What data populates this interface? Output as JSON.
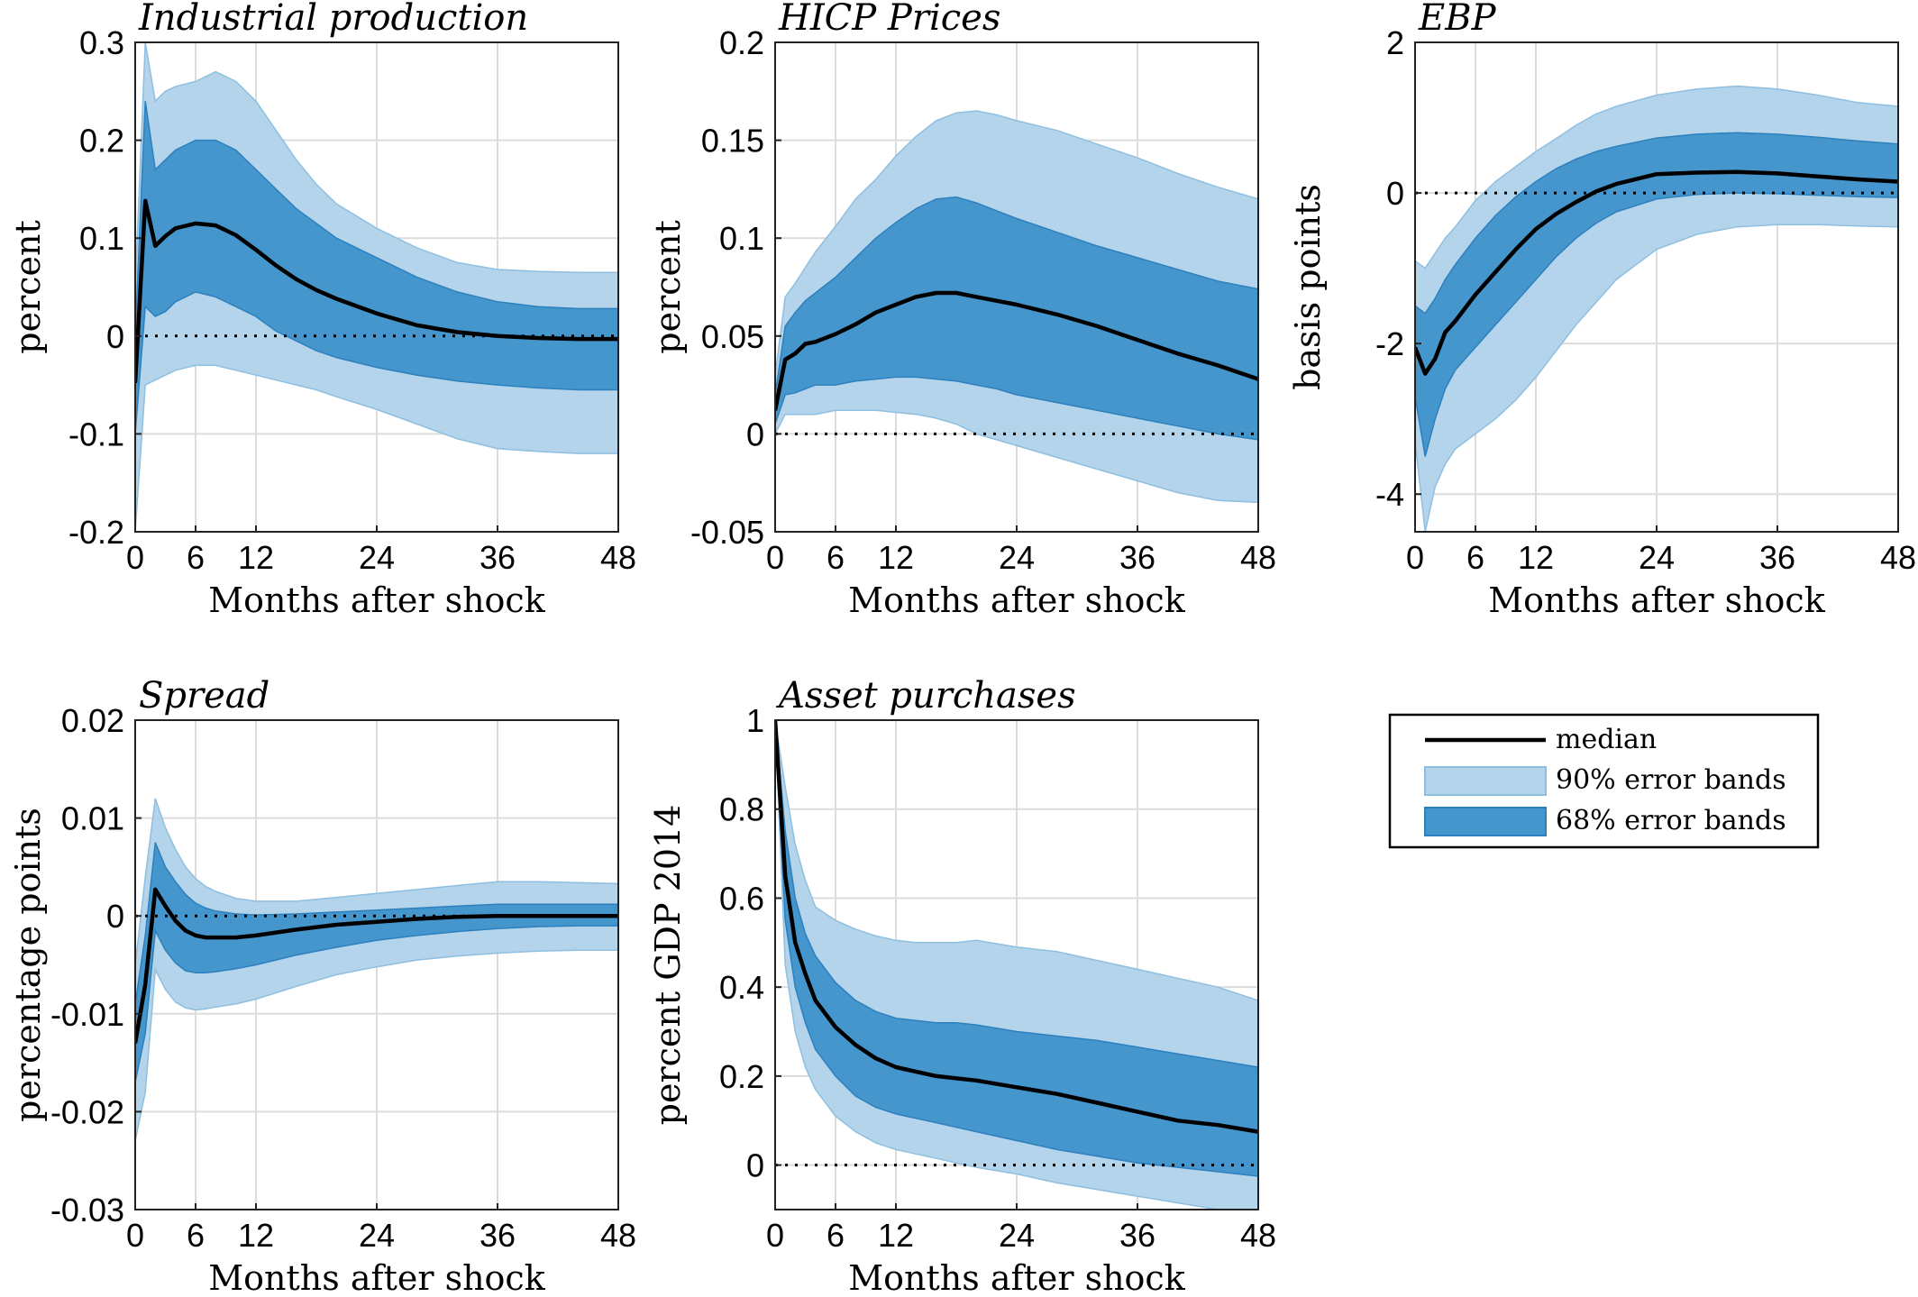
{
  "colors": {
    "band90": "#b3d4ea",
    "band90_edge": "#8fbfe0",
    "band68": "#4596cd",
    "band68_edge": "#2d80bd",
    "median": "#000000",
    "grid": "#dcdcdc",
    "axis": "#222222"
  },
  "legend": {
    "median": "median",
    "band90": "90% error bands",
    "band68": "68% error bands"
  },
  "chart_data": [
    {
      "type": "line",
      "title": "Industrial production",
      "ylabel": "percent",
      "xlabel": "Months after shock",
      "xlim": [
        0,
        48
      ],
      "ylim": [
        -0.2,
        0.3
      ],
      "xticks": [
        0,
        6,
        12,
        24,
        36,
        48
      ],
      "yticks": [
        -0.2,
        -0.1,
        0,
        0.1,
        0.2,
        0.3
      ],
      "ytick_labels": [
        "-0.2",
        "-0.1",
        "0",
        "0.1",
        "0.2",
        "0.3"
      ],
      "x": [
        0,
        1,
        2,
        3,
        4,
        6,
        8,
        10,
        12,
        14,
        16,
        18,
        20,
        24,
        28,
        32,
        36,
        40,
        44,
        48
      ],
      "median": [
        -0.048,
        0.138,
        0.092,
        0.102,
        0.11,
        0.115,
        0.113,
        0.103,
        0.088,
        0.072,
        0.058,
        0.047,
        0.038,
        0.023,
        0.011,
        0.004,
        0.0,
        -0.002,
        -0.003,
        -0.003
      ],
      "band68_upper": [
        0.0,
        0.24,
        0.17,
        0.18,
        0.19,
        0.2,
        0.2,
        0.19,
        0.17,
        0.15,
        0.13,
        0.115,
        0.1,
        0.08,
        0.06,
        0.045,
        0.035,
        0.03,
        0.028,
        0.028
      ],
      "band68_lower": [
        -0.1,
        0.03,
        0.02,
        0.025,
        0.035,
        0.045,
        0.04,
        0.03,
        0.02,
        0.005,
        -0.005,
        -0.015,
        -0.022,
        -0.032,
        -0.04,
        -0.046,
        -0.05,
        -0.053,
        -0.055,
        -0.055
      ],
      "band90_upper": [
        0.05,
        0.3,
        0.24,
        0.25,
        0.255,
        0.26,
        0.27,
        0.26,
        0.24,
        0.21,
        0.18,
        0.155,
        0.135,
        0.11,
        0.09,
        0.075,
        0.068,
        0.066,
        0.065,
        0.065
      ],
      "band90_lower": [
        -0.2,
        -0.05,
        -0.045,
        -0.04,
        -0.035,
        -0.03,
        -0.03,
        -0.035,
        -0.04,
        -0.045,
        -0.05,
        -0.055,
        -0.062,
        -0.075,
        -0.09,
        -0.105,
        -0.115,
        -0.118,
        -0.12,
        -0.12
      ],
      "zero_line": 0
    },
    {
      "type": "line",
      "title": "HICP Prices",
      "ylabel": "percent",
      "xlabel": "Months after shock",
      "xlim": [
        0,
        48
      ],
      "ylim": [
        -0.05,
        0.2
      ],
      "xticks": [
        0,
        6,
        12,
        24,
        36,
        48
      ],
      "yticks": [
        -0.05,
        0,
        0.05,
        0.1,
        0.15,
        0.2
      ],
      "ytick_labels": [
        "-0.05",
        "0",
        "0.05",
        "0.1",
        "0.15",
        "0.2"
      ],
      "x": [
        0,
        1,
        2,
        3,
        4,
        6,
        8,
        10,
        12,
        14,
        16,
        18,
        20,
        22,
        24,
        28,
        32,
        36,
        40,
        44,
        48
      ],
      "median": [
        0.012,
        0.038,
        0.041,
        0.046,
        0.047,
        0.051,
        0.056,
        0.062,
        0.066,
        0.07,
        0.072,
        0.072,
        0.07,
        0.068,
        0.066,
        0.061,
        0.055,
        0.048,
        0.041,
        0.035,
        0.028
      ],
      "band68_upper": [
        0.02,
        0.055,
        0.062,
        0.068,
        0.072,
        0.08,
        0.09,
        0.1,
        0.108,
        0.115,
        0.12,
        0.121,
        0.118,
        0.114,
        0.11,
        0.103,
        0.096,
        0.09,
        0.084,
        0.078,
        0.074
      ],
      "band68_lower": [
        0.005,
        0.02,
        0.021,
        0.023,
        0.025,
        0.025,
        0.027,
        0.028,
        0.029,
        0.029,
        0.028,
        0.027,
        0.025,
        0.023,
        0.02,
        0.016,
        0.012,
        0.008,
        0.004,
        0.0,
        -0.003
      ],
      "band90_upper": [
        0.03,
        0.07,
        0.077,
        0.085,
        0.093,
        0.106,
        0.12,
        0.13,
        0.142,
        0.152,
        0.16,
        0.164,
        0.165,
        0.163,
        0.16,
        0.155,
        0.148,
        0.141,
        0.133,
        0.126,
        0.12
      ],
      "band90_lower": [
        0.0,
        0.01,
        0.01,
        0.01,
        0.01,
        0.012,
        0.012,
        0.012,
        0.011,
        0.01,
        0.008,
        0.005,
        0.0,
        -0.003,
        -0.006,
        -0.012,
        -0.018,
        -0.024,
        -0.03,
        -0.034,
        -0.035
      ],
      "zero_line": 0
    },
    {
      "type": "line",
      "title": "EBP",
      "ylabel": "basis points",
      "xlabel": "Months after shock",
      "xlim": [
        0,
        48
      ],
      "ylim": [
        -4.5,
        2
      ],
      "xticks": [
        0,
        6,
        12,
        24,
        36,
        48
      ],
      "yticks": [
        -4,
        -2,
        0,
        2
      ],
      "ytick_labels": [
        "-4",
        "-2",
        "0",
        "2"
      ],
      "x": [
        0,
        1,
        2,
        3,
        4,
        6,
        8,
        10,
        12,
        14,
        16,
        18,
        20,
        24,
        28,
        32,
        36,
        40,
        44,
        48
      ],
      "median": [
        -2.05,
        -2.4,
        -2.2,
        -1.85,
        -1.7,
        -1.35,
        -1.05,
        -0.75,
        -0.48,
        -0.28,
        -0.12,
        0.02,
        0.12,
        0.25,
        0.27,
        0.28,
        0.26,
        0.22,
        0.18,
        0.15
      ],
      "band68_upper": [
        -1.5,
        -1.6,
        -1.4,
        -1.15,
        -0.95,
        -0.6,
        -0.3,
        -0.05,
        0.15,
        0.32,
        0.45,
        0.55,
        0.62,
        0.73,
        0.78,
        0.8,
        0.78,
        0.74,
        0.69,
        0.65
      ],
      "band68_lower": [
        -2.7,
        -3.5,
        -3.0,
        -2.6,
        -2.35,
        -2.05,
        -1.75,
        -1.45,
        -1.15,
        -0.85,
        -0.6,
        -0.4,
        -0.25,
        -0.08,
        -0.02,
        0.0,
        -0.01,
        -0.03,
        -0.05,
        -0.06
      ],
      "band90_upper": [
        -0.9,
        -1.0,
        -0.8,
        -0.6,
        -0.45,
        -0.1,
        0.15,
        0.35,
        0.55,
        0.72,
        0.9,
        1.05,
        1.15,
        1.3,
        1.38,
        1.42,
        1.38,
        1.3,
        1.2,
        1.15
      ],
      "band90_lower": [
        -3.3,
        -4.5,
        -3.9,
        -3.6,
        -3.4,
        -3.2,
        -3.0,
        -2.75,
        -2.45,
        -2.1,
        -1.75,
        -1.45,
        -1.15,
        -0.75,
        -0.55,
        -0.45,
        -0.42,
        -0.42,
        -0.44,
        -0.45
      ],
      "zero_line": 0
    },
    {
      "type": "line",
      "title": "Spread",
      "ylabel": "percentage points",
      "xlabel": "Months after shock",
      "xlim": [
        0,
        48
      ],
      "ylim": [
        -0.03,
        0.02
      ],
      "xticks": [
        0,
        6,
        12,
        24,
        36,
        48
      ],
      "yticks": [
        -0.03,
        -0.02,
        -0.01,
        0,
        0.01,
        0.02
      ],
      "ytick_labels": [
        "-0.03",
        "-0.02",
        "-0.01",
        "0",
        "0.01",
        "0.02"
      ],
      "x": [
        0,
        1,
        2,
        3,
        4,
        5,
        6,
        7,
        8,
        10,
        12,
        16,
        20,
        24,
        28,
        32,
        36,
        40,
        44,
        48
      ],
      "median": [
        -0.013,
        -0.007,
        0.0027,
        0.001,
        -0.0005,
        -0.0015,
        -0.002,
        -0.0022,
        -0.0022,
        -0.0022,
        -0.002,
        -0.0014,
        -0.0009,
        -0.0006,
        -0.0003,
        -0.0001,
        0.0,
        0.0,
        0.0,
        0.0
      ],
      "band68_upper": [
        -0.009,
        -0.002,
        0.0075,
        0.005,
        0.0035,
        0.0022,
        0.0013,
        0.0008,
        0.0005,
        0.0002,
        0.0001,
        0.0002,
        0.0004,
        0.0006,
        0.0008,
        0.001,
        0.0012,
        0.0012,
        0.0012,
        0.0012
      ],
      "band68_lower": [
        -0.017,
        -0.012,
        -0.0015,
        -0.0035,
        -0.0048,
        -0.0056,
        -0.0058,
        -0.0058,
        -0.0057,
        -0.0054,
        -0.005,
        -0.004,
        -0.0032,
        -0.0025,
        -0.002,
        -0.0016,
        -0.0013,
        -0.0011,
        -0.001,
        -0.001
      ],
      "band90_upper": [
        -0.005,
        0.004,
        0.012,
        0.009,
        0.0068,
        0.005,
        0.0038,
        0.003,
        0.0025,
        0.0018,
        0.0015,
        0.0015,
        0.0019,
        0.0023,
        0.0027,
        0.0031,
        0.0035,
        0.0035,
        0.0034,
        0.0033
      ],
      "band90_lower": [
        -0.023,
        -0.018,
        -0.0055,
        -0.0075,
        -0.0088,
        -0.0094,
        -0.0096,
        -0.0095,
        -0.0093,
        -0.009,
        -0.0085,
        -0.0072,
        -0.006,
        -0.0052,
        -0.0045,
        -0.0041,
        -0.0038,
        -0.0036,
        -0.0035,
        -0.0035
      ],
      "zero_line": 0
    },
    {
      "type": "line",
      "title": "Asset purchases",
      "ylabel": "percent GDP 2014",
      "xlabel": "Months after shock",
      "xlim": [
        0,
        48
      ],
      "ylim": [
        -0.1,
        1
      ],
      "xticks": [
        0,
        6,
        12,
        24,
        36,
        48
      ],
      "yticks": [
        0,
        0.2,
        0.4,
        0.6,
        0.8,
        1
      ],
      "ytick_labels": [
        "0",
        "0.2",
        "0.4",
        "0.6",
        "0.8",
        "1"
      ],
      "x": [
        0,
        1,
        2,
        3,
        4,
        6,
        8,
        10,
        12,
        14,
        16,
        18,
        20,
        24,
        28,
        32,
        36,
        40,
        44,
        48
      ],
      "median": [
        1.0,
        0.65,
        0.5,
        0.43,
        0.37,
        0.31,
        0.27,
        0.24,
        0.22,
        0.21,
        0.2,
        0.195,
        0.19,
        0.175,
        0.16,
        0.14,
        0.12,
        0.1,
        0.09,
        0.075
      ],
      "band68_upper": [
        1.0,
        0.75,
        0.6,
        0.52,
        0.47,
        0.41,
        0.37,
        0.345,
        0.33,
        0.325,
        0.32,
        0.32,
        0.315,
        0.3,
        0.29,
        0.28,
        0.265,
        0.25,
        0.235,
        0.22
      ],
      "band68_lower": [
        1.0,
        0.55,
        0.4,
        0.32,
        0.26,
        0.2,
        0.155,
        0.13,
        0.115,
        0.105,
        0.095,
        0.085,
        0.075,
        0.055,
        0.035,
        0.02,
        0.005,
        -0.005,
        -0.015,
        -0.025
      ],
      "band90_upper": [
        1.0,
        0.85,
        0.72,
        0.64,
        0.58,
        0.55,
        0.53,
        0.515,
        0.505,
        0.5,
        0.5,
        0.5,
        0.505,
        0.49,
        0.48,
        0.46,
        0.44,
        0.42,
        0.4,
        0.37
      ],
      "band90_lower": [
        1.0,
        0.45,
        0.3,
        0.22,
        0.17,
        0.11,
        0.075,
        0.05,
        0.035,
        0.025,
        0.015,
        0.005,
        -0.005,
        -0.02,
        -0.04,
        -0.055,
        -0.07,
        -0.085,
        -0.1,
        -0.11
      ],
      "zero_line": 0
    }
  ]
}
